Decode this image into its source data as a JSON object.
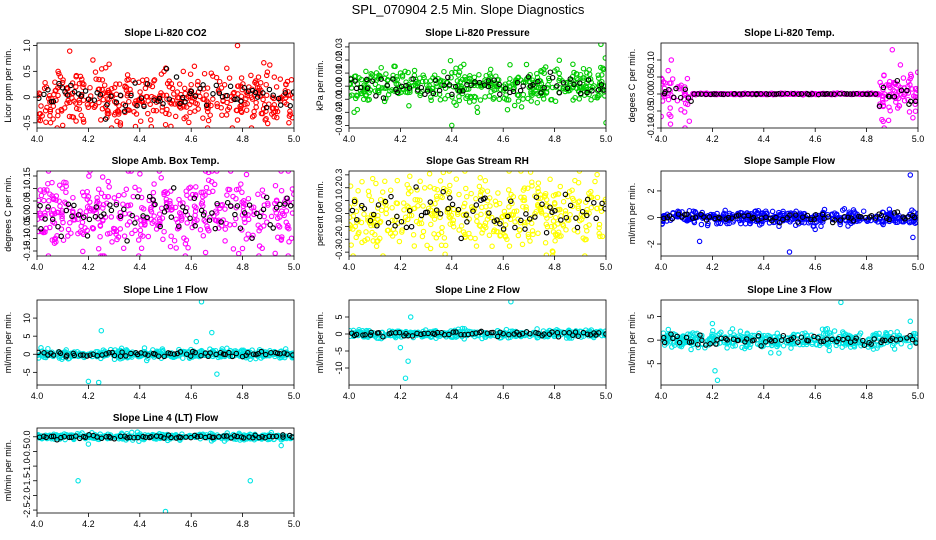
{
  "title": "SPL_070904  2.5 Min. Slope Diagnostics",
  "chart_data": [
    {
      "type": "scatter",
      "title": "Slope Li-820 CO2",
      "ylabel": "Licor ppm per min.",
      "color": "#ff0000",
      "xlim": [
        4.0,
        5.0
      ],
      "ylim": [
        -0.6,
        1.05
      ],
      "xticks": [
        4.0,
        4.2,
        4.4,
        4.6,
        4.8,
        5.0
      ],
      "xtick_labels": [
        "4.0",
        "4.2",
        "4.4",
        "4.6",
        "4.8",
        "5.0"
      ],
      "yticks": [
        -0.5,
        0,
        0.5,
        1.0
      ],
      "ytick_labels": [
        "-0.5",
        "0",
        "0.5",
        "1.0"
      ],
      "pattern": "uniform",
      "center": 0.0,
      "spread": 0.28,
      "outliers": [
        [
          4.78,
          1.0
        ],
        [
          4.1,
          -0.55
        ],
        [
          4.98,
          -0.5
        ]
      ]
    },
    {
      "type": "scatter",
      "title": "Slope Li-820 Pressure",
      "ylabel": "kPa per min.",
      "color": "#00cc00",
      "xlim": [
        4.0,
        5.0
      ],
      "ylim": [
        -0.032,
        0.033
      ],
      "xticks": [
        4.0,
        4.2,
        4.4,
        4.6,
        4.8,
        5.0
      ],
      "xtick_labels": [
        "4.0",
        "4.2",
        "4.4",
        "4.6",
        "4.8",
        "5.0"
      ],
      "yticks": [
        -0.03,
        -0.02,
        -0.01,
        0.0,
        0.01,
        0.02,
        0.03
      ],
      "ytick_labels": [
        "-0.03",
        "-0.02",
        "-0.01",
        "0.00",
        "0.01",
        "0.02",
        "0.03"
      ],
      "pattern": "uniform",
      "center": 0.0,
      "spread": 0.007,
      "outliers": [
        [
          4.98,
          0.032
        ],
        [
          4.4,
          -0.03
        ],
        [
          5.0,
          -0.028
        ],
        [
          4.02,
          -0.02
        ],
        [
          4.5,
          -0.02
        ]
      ]
    },
    {
      "type": "scatter",
      "title": "Slope Li-820 Temp.",
      "ylabel": "degees C per min.",
      "color": "#ff00ff",
      "xlim": [
        4.0,
        5.0
      ],
      "ylim": [
        -0.1,
        0.15
      ],
      "xticks": [
        4.0,
        4.2,
        4.4,
        4.6,
        4.8,
        5.0
      ],
      "xtick_labels": [
        "4.0",
        "4.2",
        "4.4",
        "4.6",
        "4.8",
        "5.0"
      ],
      "yticks": [
        -0.1,
        -0.05,
        0.0,
        0.05,
        0.1
      ],
      "ytick_labels": [
        "-0.10",
        "-0.05",
        "0.00",
        "0.05",
        "0.10"
      ],
      "pattern": "edges",
      "center": 0.0,
      "spread": 0.035,
      "outliers": [
        [
          4.04,
          0.1
        ],
        [
          4.11,
          -0.08
        ],
        [
          4.9,
          0.13
        ],
        [
          4.98,
          -0.07
        ]
      ]
    },
    {
      "type": "scatter",
      "title": "Slope Amb. Box Temp.",
      "ylabel": "degrees C per min.",
      "color": "#ff00ff",
      "xlim": [
        4.0,
        5.0
      ],
      "ylim": [
        -0.17,
        0.17
      ],
      "xticks": [
        4.0,
        4.2,
        4.4,
        4.6,
        4.8,
        5.0
      ],
      "xtick_labels": [
        "4.0",
        "4.2",
        "4.4",
        "4.6",
        "4.8",
        "5.0"
      ],
      "yticks": [
        -0.15,
        -0.1,
        -0.05,
        0.0,
        0.05,
        0.1,
        0.15
      ],
      "ytick_labels": [
        "-0.15",
        "-0.10",
        "-0.05",
        "0.00",
        "0.05",
        "0.10",
        "0.15"
      ],
      "pattern": "uniform",
      "center": 0.0,
      "spread": 0.08,
      "outliers": []
    },
    {
      "type": "scatter",
      "title": "Slope Gas Stream RH",
      "ylabel": "percent per min.",
      "color": "#ffff00",
      "xlim": [
        4.0,
        5.0
      ],
      "ylim": [
        -0.33,
        0.33
      ],
      "xticks": [
        4.0,
        4.2,
        4.4,
        4.6,
        4.8,
        5.0
      ],
      "xtick_labels": [
        "4.0",
        "4.2",
        "4.4",
        "4.6",
        "4.8",
        "5.0"
      ],
      "yticks": [
        -0.3,
        -0.2,
        -0.1,
        0.0,
        0.1,
        0.2,
        0.3
      ],
      "ytick_labels": [
        "-0.3",
        "-0.2",
        "-0.1",
        "0.0",
        "0.1",
        "0.2",
        "0.3"
      ],
      "pattern": "uniform",
      "center": 0.0,
      "spread": 0.15,
      "outliers": []
    },
    {
      "type": "scatter",
      "title": "Slope Sample Flow",
      "ylabel": "ml/min per min.",
      "color": "#0000ff",
      "xlim": [
        4.0,
        5.0
      ],
      "ylim": [
        -2.9,
        3.5
      ],
      "xticks": [
        4.0,
        4.2,
        4.4,
        4.6,
        4.8,
        5.0
      ],
      "xtick_labels": [
        "4.0",
        "4.2",
        "4.4",
        "4.6",
        "4.8",
        "5.0"
      ],
      "yticks": [
        -2,
        0,
        2
      ],
      "ytick_labels": [
        "-2",
        "0",
        "2"
      ],
      "pattern": "uniform",
      "center": 0.0,
      "spread": 0.25,
      "outliers": [
        [
          4.97,
          3.2
        ],
        [
          4.15,
          -1.8
        ],
        [
          4.5,
          -2.6
        ],
        [
          4.98,
          -1.5
        ],
        [
          4.6,
          -0.9
        ]
      ]
    },
    {
      "type": "scatter",
      "title": "Slope Line 1 Flow",
      "ylabel": "ml/min per min.",
      "color": "#00e5e5",
      "xlim": [
        4.0,
        5.0
      ],
      "ylim": [
        -8.5,
        15
      ],
      "xticks": [
        4.0,
        4.2,
        4.4,
        4.6,
        4.8,
        5.0
      ],
      "xtick_labels": [
        "4.0",
        "4.2",
        "4.4",
        "4.6",
        "4.8",
        "5.0"
      ],
      "yticks": [
        -5,
        0,
        5,
        10
      ],
      "ytick_labels": [
        "-5",
        "0",
        "5",
        "10"
      ],
      "pattern": "uniform",
      "center": 0.0,
      "spread": 0.6,
      "outliers": [
        [
          4.64,
          14.5
        ],
        [
          4.25,
          6.5
        ],
        [
          4.2,
          -7.5
        ],
        [
          4.24,
          -7.8
        ],
        [
          4.7,
          -5.5
        ],
        [
          4.68,
          6.0
        ],
        [
          4.62,
          3.5
        ]
      ]
    },
    {
      "type": "scatter",
      "title": "Slope Line 2 Flow",
      "ylabel": "ml/min per min.",
      "color": "#00e5e5",
      "xlim": [
        4.0,
        5.0
      ],
      "ylim": [
        -15,
        10
      ],
      "xticks": [
        4.0,
        4.2,
        4.4,
        4.6,
        4.8,
        5.0
      ],
      "xtick_labels": [
        "4.0",
        "4.2",
        "4.4",
        "4.6",
        "4.8",
        "5.0"
      ],
      "yticks": [
        -10,
        -5,
        0,
        5
      ],
      "ytick_labels": [
        "-10",
        "-5",
        "0",
        "5"
      ],
      "pattern": "uniform",
      "center": 0.0,
      "spread": 0.6,
      "outliers": [
        [
          4.63,
          9.5
        ],
        [
          4.22,
          -13
        ],
        [
          4.23,
          -8
        ],
        [
          4.24,
          5
        ],
        [
          4.2,
          -4
        ]
      ]
    },
    {
      "type": "scatter",
      "title": "Slope Line 3 Flow",
      "ylabel": "ml/min per min.",
      "color": "#00e5e5",
      "xlim": [
        4.0,
        5.0
      ],
      "ylim": [
        -9.5,
        8.5
      ],
      "xticks": [
        4.0,
        4.2,
        4.4,
        4.6,
        4.8,
        5.0
      ],
      "xtick_labels": [
        "4.0",
        "4.2",
        "4.4",
        "4.6",
        "4.8",
        "5.0"
      ],
      "yticks": [
        -5,
        0,
        5
      ],
      "ytick_labels": [
        "-5",
        "0",
        "5"
      ],
      "pattern": "uniform",
      "center": 0.0,
      "spread": 0.9,
      "outliers": [
        [
          4.7,
          8
        ],
        [
          4.22,
          -8.5
        ],
        [
          4.21,
          -6.5
        ],
        [
          4.2,
          3.5
        ],
        [
          4.97,
          4
        ]
      ]
    },
    {
      "type": "scatter",
      "title": "Slope Line 4 (LT) Flow",
      "ylabel": "ml/min per min.",
      "color": "#00e5e5",
      "xlim": [
        4.0,
        5.0
      ],
      "ylim": [
        -2.6,
        0.3
      ],
      "xticks": [
        4.0,
        4.2,
        4.4,
        4.6,
        4.8,
        5.0
      ],
      "xtick_labels": [
        "4.0",
        "4.2",
        "4.4",
        "4.6",
        "4.8",
        "5.0"
      ],
      "yticks": [
        -2.5,
        -2.0,
        -1.5,
        -1.0,
        -0.5,
        0.0
      ],
      "ytick_labels": [
        "-2.5",
        "-2.0",
        "-1.5",
        "-1.0",
        "-0.5",
        "0.0"
      ],
      "pattern": "uniform",
      "center": 0.0,
      "spread": 0.05,
      "outliers": [
        [
          4.16,
          -1.5
        ],
        [
          4.5,
          -2.55
        ],
        [
          4.83,
          -1.5
        ],
        [
          4.2,
          -0.25
        ],
        [
          4.95,
          -0.3
        ]
      ]
    }
  ]
}
